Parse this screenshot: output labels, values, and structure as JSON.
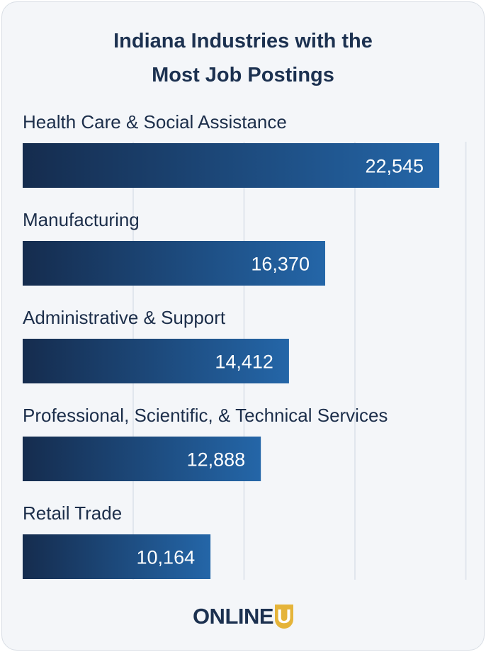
{
  "chart_data": {
    "type": "bar",
    "orientation": "horizontal",
    "title_lines": [
      "Indiana Industries with the",
      "Most Job Postings"
    ],
    "categories": [
      "Health Care & Social Assistance",
      "Manufacturing",
      "Administrative & Support",
      "Professional, Scientific, & Technical Services",
      "Retail Trade"
    ],
    "values": [
      22545,
      16370,
      14412,
      12888,
      10164
    ],
    "value_labels": [
      "22,545",
      "16,370",
      "14,412",
      "12,888",
      "10,164"
    ],
    "xlim": [
      0,
      24000
    ],
    "grid": true,
    "bar_gradient": [
      "#152c4e",
      "#2466a8"
    ]
  },
  "logo": {
    "text": "ONLINE",
    "badge": "U",
    "badge_color": "#e5b43a"
  }
}
